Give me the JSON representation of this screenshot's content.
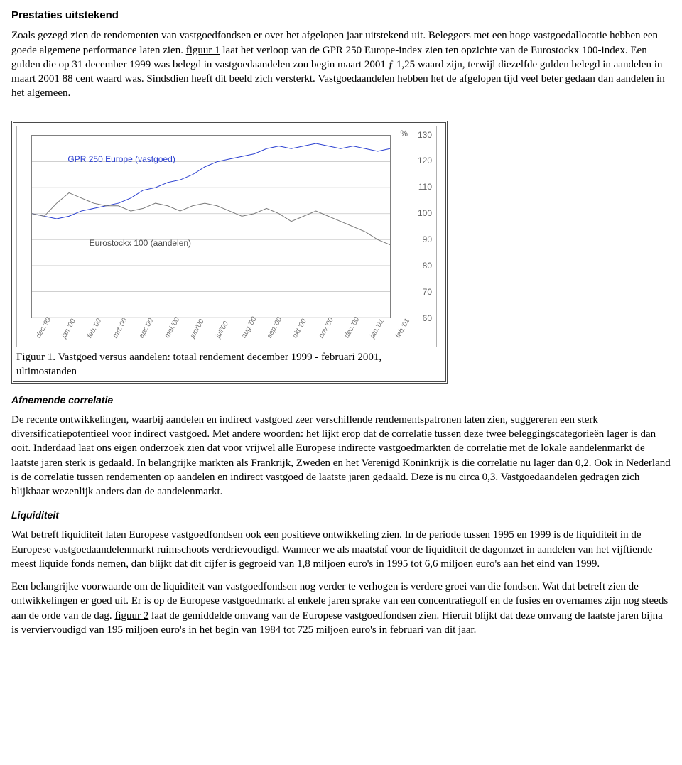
{
  "section1": {
    "heading": "Prestaties uitstekend",
    "para_a": "Zoals gezegd zien de rendementen van vastgoedfondsen er over het afgelopen jaar uitstekend uit. Beleggers met een hoge vastgoedallocatie hebben een goede algemene performance laten zien. ",
    "link1": "figuur 1",
    "para_b": " laat het verloop van de GPR 250 Europe-index zien ten opzichte van de Eurostockx 100-index. Een gulden die op 31 december 1999 was belegd in vastgoedaandelen zou begin maart 2001 ƒ 1,25 waard zijn, terwijl diezelfde gulden belegd in aandelen in maart 2001 88 cent waard was. Sindsdien heeft dit beeld zich versterkt. Vastgoedaandelen hebben het de afgelopen tijd veel beter gedaan dan aandelen in het algemeen."
  },
  "figure1": {
    "caption": "Figuur 1. Vastgoed versus aandelen: totaal rendement december 1999 - februari 2001, ultimostanden",
    "pct_symbol": "%",
    "y_ticks": [
      "130",
      "120",
      "110",
      "100",
      "90",
      "80",
      "70",
      "60"
    ],
    "ylim": [
      60,
      130
    ],
    "x_labels": [
      "dec.'99",
      "jan.'00",
      "feb.'00",
      "mrt.'00",
      "apr.'00",
      "mei.'00",
      "juni'00",
      "juli'00",
      "aug.'00",
      "sep.'00",
      "okt.'00",
      "nov.'00",
      "dec.'00",
      "jan.'01",
      "feb.'01"
    ],
    "series": [
      {
        "name": "GPR 250 Europe (vastgoed)",
        "label_color": "#2a3fd0",
        "line_color": "#2a3fd0",
        "line_width": 2,
        "label_pos": {
          "left_pct": 10,
          "top_pct": 10
        },
        "values": [
          100,
          99,
          98,
          99,
          101,
          102,
          103,
          104,
          106,
          109,
          110,
          112,
          113,
          115,
          118,
          120,
          121,
          122,
          123,
          125,
          126,
          125,
          126,
          127,
          126,
          125,
          126,
          125,
          124,
          125
        ]
      },
      {
        "name": "Eurostockx 100 (aandelen)",
        "label_color": "#4a4a4a",
        "line_color": "#7a7a7a",
        "line_width": 2,
        "label_pos": {
          "left_pct": 16,
          "top_pct": 56
        },
        "values": [
          100,
          99,
          104,
          108,
          106,
          104,
          103,
          103,
          101,
          102,
          104,
          103,
          101,
          103,
          104,
          103,
          101,
          99,
          100,
          102,
          100,
          97,
          99,
          101,
          99,
          97,
          95,
          93,
          90,
          88
        ]
      }
    ],
    "grid_color": "#c8c8c8",
    "background_color": "#ffffff"
  },
  "section2": {
    "heading": "Afnemende correlatie",
    "para": "De recente ontwikkelingen, waarbij aandelen en indirect vastgoed zeer verschillende rendementspatronen laten zien, suggereren een sterk diversificatiepotentieel voor indirect vastgoed. Met andere woorden: het lijkt erop dat de correlatie tussen deze twee beleggingscategorieën lager is dan ooit. Inderdaad laat ons eigen onderzoek zien dat voor vrijwel alle Europese indirecte vastgoedmarkten de correlatie met de lokale aandelenmarkt de laatste jaren sterk is gedaald. In belangrijke markten als Frankrijk, Zweden en het Verenigd Koninkrijk is die correlatie nu lager dan 0,2. Ook in Nederland is de correlatie tussen rendementen op aandelen en indirect vastgoed de laatste jaren gedaald. Deze is nu circa 0,3. Vastgoedaandelen gedragen zich blijkbaar wezenlijk anders dan de aandelenmarkt."
  },
  "section3": {
    "heading": "Liquiditeit",
    "para1": "Wat betreft liquiditeit laten Europese vastgoedfondsen ook een positieve ontwikkeling zien. In de periode tussen 1995 en 1999 is de liquiditeit in de Europese vastgoedaandelenmarkt ruimschoots verdrievoudigd. Wanneer we als maatstaf voor de liquiditeit de dagomzet in aandelen van het vijftiende meest liquide fonds nemen, dan blijkt dat dit cijfer is gegroeid van 1,8 miljoen euro's in 1995 tot 6,6 miljoen euro's aan het eind van 1999.",
    "para2_a": "Een belangrijke voorwaarde om de liquiditeit van vastgoedfondsen nog verder te verhogen is verdere groei van die fondsen. Wat dat betreft zien de ontwikkelingen er goed uit. Er is op de Europese vastgoedmarkt al enkele jaren sprake van een concentratiegolf en de fusies en overnames zijn nog steeds aan de orde van de dag. ",
    "link2": "figuur 2",
    "para2_b": " laat de gemiddelde omvang van de Europese vastgoedfondsen zien. Hieruit blijkt dat deze omvang de laatste jaren bijna is verviervoudigd van 195 miljoen euro's in het begin van 1984 tot 725 miljoen euro's in februari van dit jaar."
  }
}
